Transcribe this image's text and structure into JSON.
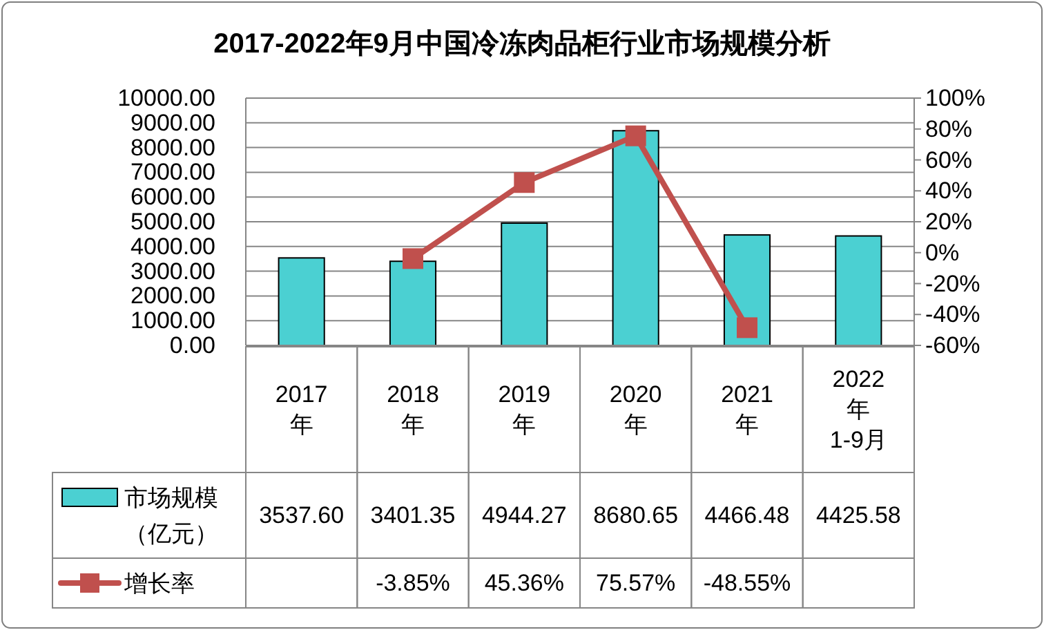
{
  "chart_data": {
    "type": "bar",
    "title": "2017-2022年9月中国冷冻肉品柜行业市场规模分析",
    "categories": [
      "2017年",
      "2018年",
      "2019年",
      "2020年",
      "2021年",
      "2022年1-9月"
    ],
    "series": [
      {
        "name": "市场规模（亿元）",
        "color": "#4bd0d2",
        "values": [
          3537.6,
          3401.35,
          4944.27,
          8680.65,
          4466.48,
          4425.58
        ],
        "value_labels": [
          "3537.60",
          "3401.35",
          "4944.27",
          "8680.65",
          "4466.48",
          "4425.58"
        ]
      },
      {
        "name": "增长率",
        "type": "line",
        "axis": "y2",
        "color": "#c0504d",
        "values": [
          null,
          -3.85,
          45.36,
          75.57,
          -48.55,
          null
        ],
        "value_labels": [
          null,
          "-3.85%",
          "45.36%",
          "75.57%",
          "-48.55%",
          null
        ]
      }
    ],
    "ylim": [
      0,
      10000
    ],
    "yticks": [
      {
        "value": 0,
        "label": "0.00"
      },
      {
        "value": 1000,
        "label": "1000.00"
      },
      {
        "value": 2000,
        "label": "2000.00"
      },
      {
        "value": 3000,
        "label": "3000.00"
      },
      {
        "value": 4000,
        "label": "4000.00"
      },
      {
        "value": 5000,
        "label": "5000.00"
      },
      {
        "value": 6000,
        "label": "6000.00"
      },
      {
        "value": 7000,
        "label": "7000.00"
      },
      {
        "value": 8000,
        "label": "8000.00"
      },
      {
        "value": 9000,
        "label": "9000.00"
      },
      {
        "value": 10000,
        "label": "10000.00"
      }
    ],
    "y2lim": [
      -60,
      100
    ],
    "y2ticks": [
      {
        "value": -60,
        "label": "-60%"
      },
      {
        "value": -40,
        "label": "-40%"
      },
      {
        "value": -20,
        "label": "-20%"
      },
      {
        "value": 0,
        "label": "0%"
      },
      {
        "value": 20,
        "label": "20%"
      },
      {
        "value": 40,
        "label": "40%"
      },
      {
        "value": 60,
        "label": "60%"
      },
      {
        "value": 80,
        "label": "80%"
      },
      {
        "value": 100,
        "label": "100%"
      }
    ],
    "grid": "y",
    "legend": "bottom left",
    "marker": "square",
    "line_style": "solid"
  }
}
